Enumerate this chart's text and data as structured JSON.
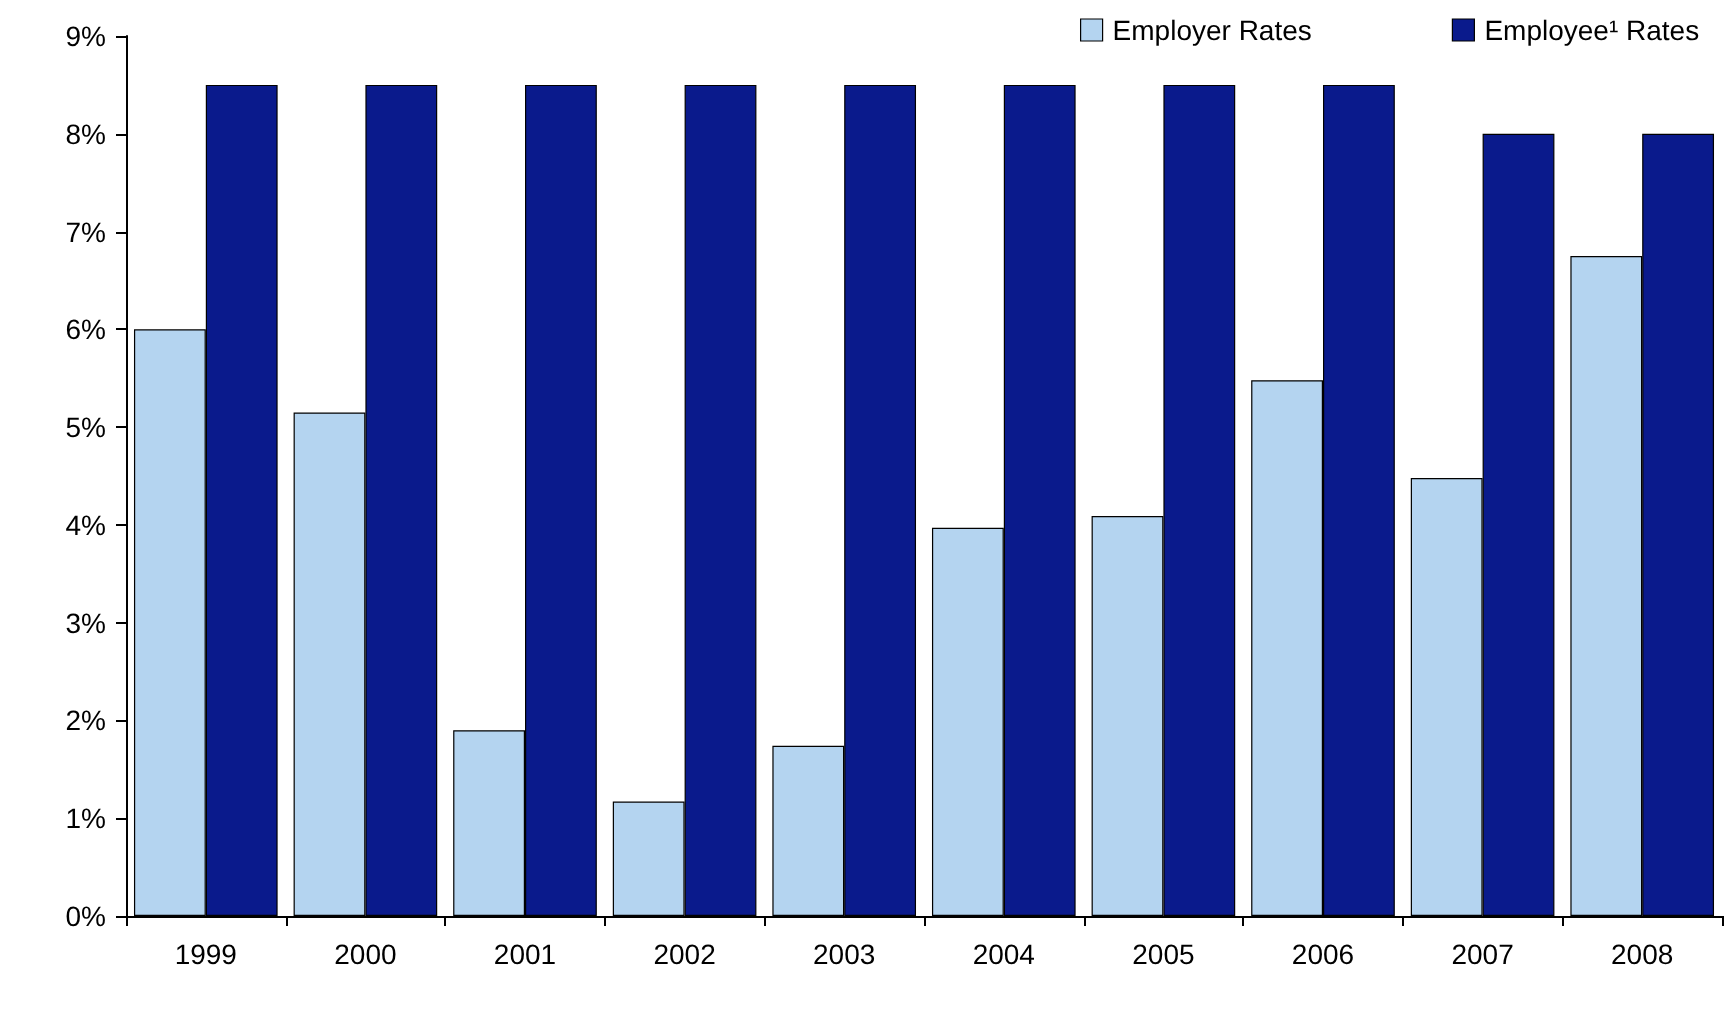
{
  "chart_data": {
    "type": "bar",
    "categories": [
      "1999",
      "2000",
      "2001",
      "2002",
      "2003",
      "2004",
      "2005",
      "2006",
      "2007",
      "2008"
    ],
    "series": [
      {
        "name": "Employer Rates",
        "color": "#b4d4f0",
        "values": [
          6.0,
          5.15,
          1.9,
          1.17,
          1.74,
          3.97,
          4.09,
          5.48,
          4.48,
          6.75
        ]
      },
      {
        "name": "Employee¹ Rates",
        "color": "#0a1a8c",
        "values": [
          8.5,
          8.5,
          8.5,
          8.5,
          8.5,
          8.5,
          8.5,
          8.5,
          8.0,
          8.0
        ]
      }
    ],
    "ylim": [
      0,
      9
    ],
    "yticks": [
      {
        "value": 0,
        "label": "0%"
      },
      {
        "value": 1,
        "label": "1%"
      },
      {
        "value": 2,
        "label": "2%"
      },
      {
        "value": 3,
        "label": "3%"
      },
      {
        "value": 4,
        "label": "4%"
      },
      {
        "value": 5,
        "label": "5%"
      },
      {
        "value": 6,
        "label": "6%"
      },
      {
        "value": 7,
        "label": "7%"
      },
      {
        "value": 8,
        "label": "8%"
      },
      {
        "value": 9,
        "label": "9%"
      }
    ],
    "grid": false,
    "legend": "top"
  }
}
